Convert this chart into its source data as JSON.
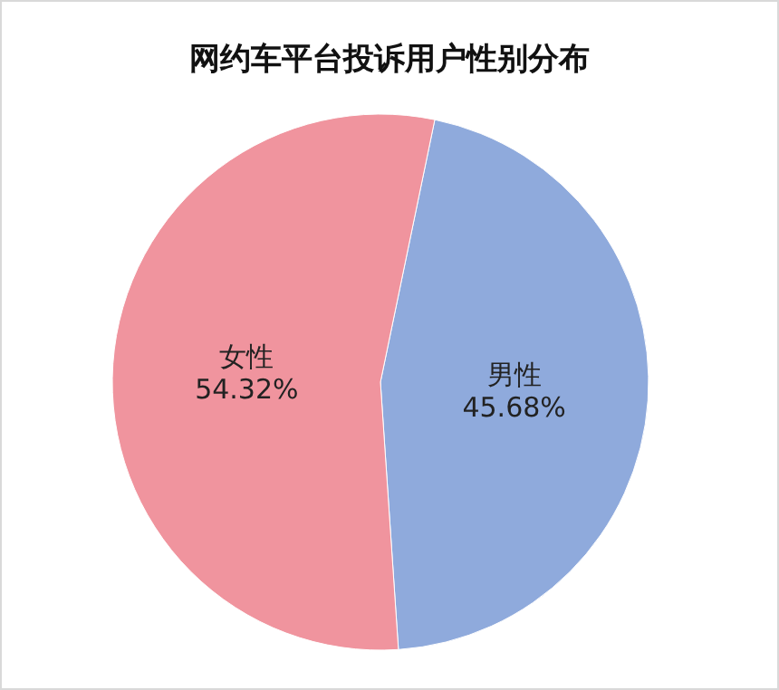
{
  "chart_data": {
    "type": "pie",
    "title": "网约车平台投诉用户性别分布",
    "categories": [
      "男性",
      "女性"
    ],
    "values": [
      45.68,
      54.32
    ],
    "value_labels": [
      "45.68%",
      "54.32%"
    ],
    "colors": [
      "#8faadc",
      "#f0949e"
    ],
    "legend": false
  }
}
